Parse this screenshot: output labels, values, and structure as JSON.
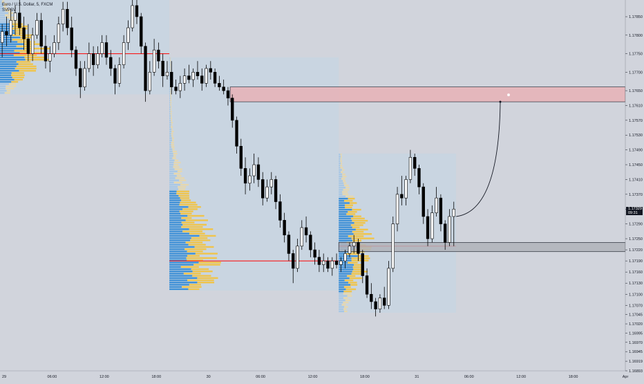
{
  "header": {
    "symbol": "Euro / U.S. Dollar, 5, FXCM",
    "indicator": "SVPSV"
  },
  "price_tag": {
    "price": "1.17329",
    "countdown": "09:31"
  },
  "chart_data": {
    "type": "candlestick",
    "x_tick_labels": [
      "29",
      "06:00",
      "12:00",
      "18:00",
      "30",
      "06:00",
      "12:00",
      "18:00",
      "31",
      "06:00",
      "12:00",
      "18:00",
      "Apr",
      "06:00",
      "12:00",
      "18:00"
    ],
    "y_tick_labels": [
      "1.17850",
      "1.17800",
      "1.17750",
      "1.17700",
      "1.17650",
      "1.17610",
      "1.17570",
      "1.17530",
      "1.17490",
      "1.17450",
      "1.17410",
      "1.17370",
      "1.17330",
      "1.17290",
      "1.17250",
      "1.17220",
      "1.17190",
      "1.17160",
      "1.17130",
      "1.17100",
      "1.17070",
      "1.17045",
      "1.17020",
      "1.16995",
      "1.16970",
      "1.16945",
      "1.16919",
      "1.16893"
    ],
    "y_tick_values": [
      1.1785,
      1.178,
      1.1775,
      1.177,
      1.1765,
      1.1761,
      1.1757,
      1.1753,
      1.1749,
      1.1745,
      1.1741,
      1.1737,
      1.1733,
      1.1729,
      1.1725,
      1.1722,
      1.1719,
      1.1716,
      1.1713,
      1.171,
      1.1707,
      1.17045,
      1.1702,
      1.16995,
      1.1697,
      1.16945,
      1.16919,
      1.16893
    ],
    "x_range_hours": [
      0,
      72
    ],
    "ylim": [
      1.16893,
      1.17895
    ],
    "grid": false,
    "colors": {
      "up": "#ffffff",
      "down": "#000000",
      "outline": "#000000",
      "vp_up": "#3d8fd6",
      "vp_down": "#f0c44a",
      "vp_value_area_light": "#a9c7e4",
      "poc": "#ff0000",
      "zone_supply": "#e7b1b6",
      "zone_demand": "#b0b3ba",
      "profile_box": "#c6d6e3",
      "projection": "#131722"
    },
    "volume_profiles": [
      {
        "session": "29",
        "from_h": 0,
        "to_h": 19.5,
        "high": 1.1791,
        "low": 1.1764,
        "poc": 1.1775
      },
      {
        "session": "30",
        "from_h": 19.5,
        "to_h": 39,
        "high": 1.1774,
        "low": 1.1711,
        "poc": 1.1719
      },
      {
        "session": "31",
        "from_h": 39,
        "to_h": 52.5,
        "high": 1.1748,
        "low": 1.1705,
        "poc": 1.1723
      }
    ],
    "zones": [
      {
        "kind": "supply",
        "from_h": 26.5,
        "to_h": 77,
        "top": 1.1766,
        "bottom": 1.1762
      },
      {
        "kind": "demand",
        "from_h": 39,
        "to_h": 77,
        "top": 1.1724,
        "bottom": 1.17215
      }
    ],
    "projection": {
      "from_h": 52.2,
      "to_h": 57.6,
      "from_price": 1.1731,
      "to_price": 1.1762
    },
    "candles": [
      [
        0,
        1.1778,
        1.1783,
        1.1774,
        1.1781
      ],
      [
        0.5,
        1.1781,
        1.1785,
        1.1777,
        1.178
      ],
      [
        1,
        1.178,
        1.1787,
        1.1778,
        1.1784
      ],
      [
        1.5,
        1.1784,
        1.1788,
        1.178,
        1.1786
      ],
      [
        2,
        1.1786,
        1.179,
        1.178,
        1.1782
      ],
      [
        2.5,
        1.1782,
        1.1785,
        1.1776,
        1.1779
      ],
      [
        3,
        1.1779,
        1.1783,
        1.1773,
        1.1775
      ],
      [
        3.5,
        1.1775,
        1.1782,
        1.1773,
        1.178
      ],
      [
        4,
        1.178,
        1.1786,
        1.1779,
        1.1784
      ],
      [
        4.5,
        1.1784,
        1.1786,
        1.1775,
        1.1777
      ],
      [
        5,
        1.1777,
        1.178,
        1.1771,
        1.1773
      ],
      [
        5.5,
        1.1773,
        1.1777,
        1.177,
        1.1775
      ],
      [
        6,
        1.1775,
        1.178,
        1.1774,
        1.1778
      ],
      [
        6.5,
        1.1778,
        1.1785,
        1.1776,
        1.1783
      ],
      [
        7,
        1.1783,
        1.1789,
        1.1781,
        1.1787
      ],
      [
        7.5,
        1.1787,
        1.1789,
        1.178,
        1.1782
      ],
      [
        8,
        1.1782,
        1.1785,
        1.1774,
        1.1776
      ],
      [
        8.5,
        1.1776,
        1.1777,
        1.1769,
        1.1771
      ],
      [
        9,
        1.1771,
        1.1773,
        1.1763,
        1.1766
      ],
      [
        9.5,
        1.1766,
        1.1773,
        1.1765,
        1.1771
      ],
      [
        10,
        1.1771,
        1.1778,
        1.177,
        1.1775
      ],
      [
        10.5,
        1.1775,
        1.1777,
        1.1769,
        1.1772
      ],
      [
        11,
        1.1772,
        1.1777,
        1.1771,
        1.1775
      ],
      [
        11.5,
        1.1775,
        1.178,
        1.1774,
        1.1778
      ],
      [
        12,
        1.1778,
        1.178,
        1.1772,
        1.1774
      ],
      [
        12.5,
        1.1774,
        1.1776,
        1.1769,
        1.1771
      ],
      [
        13,
        1.1771,
        1.1772,
        1.1764,
        1.1767
      ],
      [
        13.5,
        1.1767,
        1.1774,
        1.1766,
        1.1772
      ],
      [
        14,
        1.1772,
        1.178,
        1.1771,
        1.1778
      ],
      [
        14.5,
        1.1778,
        1.1784,
        1.1776,
        1.1782
      ],
      [
        15,
        1.1782,
        1.179,
        1.1781,
        1.1788
      ],
      [
        15.5,
        1.1788,
        1.179,
        1.1783,
        1.1785
      ],
      [
        16,
        1.1785,
        1.1786,
        1.1775,
        1.1777
      ],
      [
        16.5,
        1.1777,
        1.1778,
        1.1762,
        1.1765
      ],
      [
        17,
        1.1765,
        1.1773,
        1.1764,
        1.177
      ],
      [
        17.5,
        1.177,
        1.1779,
        1.1769,
        1.1776
      ],
      [
        18,
        1.1776,
        1.1778,
        1.1771,
        1.1773
      ],
      [
        18.5,
        1.1773,
        1.1775,
        1.1766,
        1.1769
      ],
      [
        19,
        1.1769,
        1.1773,
        1.1768,
        1.177
      ],
      [
        19.5,
        1.177,
        1.1773,
        1.1764,
        1.1766
      ],
      [
        20,
        1.1766,
        1.1768,
        1.1764,
        1.1765
      ],
      [
        20.5,
        1.1765,
        1.1769,
        1.1763,
        1.1767
      ],
      [
        21,
        1.1767,
        1.1771,
        1.1765,
        1.1769
      ],
      [
        21.5,
        1.1769,
        1.1772,
        1.1767,
        1.1768
      ],
      [
        22,
        1.1768,
        1.1771,
        1.1766,
        1.177
      ],
      [
        22.5,
        1.177,
        1.1773,
        1.1768,
        1.1769
      ],
      [
        23,
        1.1769,
        1.1771,
        1.1765,
        1.1767
      ],
      [
        23.5,
        1.1767,
        1.1772,
        1.1766,
        1.1771
      ],
      [
        24,
        1.1771,
        1.1773,
        1.1768,
        1.177
      ],
      [
        24.5,
        1.177,
        1.1771,
        1.1766,
        1.1767
      ],
      [
        25,
        1.1767,
        1.1769,
        1.1765,
        1.1766
      ],
      [
        25.5,
        1.1766,
        1.1768,
        1.1764,
        1.1765
      ],
      [
        26,
        1.1765,
        1.1766,
        1.1761,
        1.1763
      ],
      [
        26.5,
        1.1763,
        1.1764,
        1.1755,
        1.1757
      ],
      [
        27,
        1.1757,
        1.1758,
        1.1748,
        1.175
      ],
      [
        27.5,
        1.175,
        1.1752,
        1.1742,
        1.1744
      ],
      [
        28,
        1.1744,
        1.1747,
        1.1737,
        1.174
      ],
      [
        28.5,
        1.174,
        1.1744,
        1.1738,
        1.1742
      ],
      [
        29,
        1.1742,
        1.1748,
        1.174,
        1.1745
      ],
      [
        29.5,
        1.1745,
        1.1747,
        1.1739,
        1.1741
      ],
      [
        30,
        1.1741,
        1.1743,
        1.1734,
        1.1736
      ],
      [
        30.5,
        1.1736,
        1.1741,
        1.1735,
        1.1739
      ],
      [
        31,
        1.1739,
        1.1743,
        1.1737,
        1.1741
      ],
      [
        31.5,
        1.1741,
        1.1742,
        1.1733,
        1.1735
      ],
      [
        32,
        1.1735,
        1.1737,
        1.1728,
        1.173
      ],
      [
        32.5,
        1.173,
        1.1732,
        1.1724,
        1.1726
      ],
      [
        33,
        1.1726,
        1.1727,
        1.1719,
        1.1721
      ],
      [
        33.5,
        1.1721,
        1.1722,
        1.1713,
        1.1717
      ],
      [
        34,
        1.1717,
        1.1725,
        1.1716,
        1.1723
      ],
      [
        34.5,
        1.1723,
        1.173,
        1.1722,
        1.1728
      ],
      [
        35,
        1.1728,
        1.1731,
        1.1724,
        1.1726
      ],
      [
        35.5,
        1.1726,
        1.1727,
        1.172,
        1.1722
      ],
      [
        36,
        1.1722,
        1.1724,
        1.1718,
        1.172
      ],
      [
        36.5,
        1.172,
        1.1722,
        1.1716,
        1.1718
      ],
      [
        37,
        1.1718,
        1.1721,
        1.1716,
        1.1719
      ],
      [
        37.5,
        1.1719,
        1.172,
        1.1716,
        1.1717
      ],
      [
        38,
        1.1717,
        1.172,
        1.1715,
        1.1719
      ],
      [
        38.5,
        1.1719,
        1.1721,
        1.1717,
        1.1718
      ],
      [
        39,
        1.1718,
        1.172,
        1.1716,
        1.1719
      ],
      [
        39.5,
        1.1719,
        1.1722,
        1.1717,
        1.1721
      ],
      [
        40,
        1.1721,
        1.1724,
        1.172,
        1.1723
      ],
      [
        40.5,
        1.1723,
        1.1726,
        1.1721,
        1.1724
      ],
      [
        41,
        1.1724,
        1.1725,
        1.1719,
        1.1721
      ],
      [
        41.5,
        1.1721,
        1.1722,
        1.1713,
        1.1715
      ],
      [
        42,
        1.1715,
        1.1717,
        1.1709,
        1.171
      ],
      [
        42.5,
        1.171,
        1.1713,
        1.1706,
        1.1708
      ],
      [
        43,
        1.1708,
        1.1709,
        1.1704,
        1.1706
      ],
      [
        43.5,
        1.1706,
        1.171,
        1.1705,
        1.1709
      ],
      [
        44,
        1.1709,
        1.1712,
        1.1706,
        1.1707
      ],
      [
        44.5,
        1.1707,
        1.1719,
        1.1706,
        1.1717
      ],
      [
        45,
        1.1717,
        1.1731,
        1.1716,
        1.1729
      ],
      [
        45.5,
        1.1729,
        1.1739,
        1.1727,
        1.1737
      ],
      [
        46,
        1.1737,
        1.1742,
        1.1734,
        1.1736
      ],
      [
        46.5,
        1.1736,
        1.1742,
        1.1734,
        1.1741
      ],
      [
        47,
        1.1741,
        1.1749,
        1.174,
        1.1747
      ],
      [
        47.5,
        1.1747,
        1.1748,
        1.1742,
        1.1744
      ],
      [
        48,
        1.1744,
        1.1745,
        1.1737,
        1.1739
      ],
      [
        48.5,
        1.1739,
        1.174,
        1.1729,
        1.1731
      ],
      [
        49,
        1.1731,
        1.1733,
        1.1723,
        1.1725
      ],
      [
        49.5,
        1.1725,
        1.1734,
        1.1724,
        1.1732
      ],
      [
        50,
        1.1732,
        1.1739,
        1.1731,
        1.1736
      ],
      [
        50.5,
        1.1736,
        1.1737,
        1.1727,
        1.1729
      ],
      [
        51,
        1.1729,
        1.173,
        1.1722,
        1.1724
      ],
      [
        51.5,
        1.1724,
        1.1733,
        1.1723,
        1.1731
      ],
      [
        52,
        1.1731,
        1.1735,
        1.1723,
        1.1733
      ]
    ]
  }
}
